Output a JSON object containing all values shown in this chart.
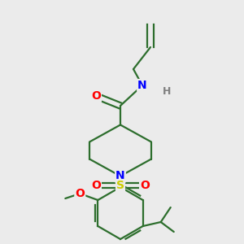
{
  "background_color": "#ebebeb",
  "bond_color": "#2d6e2d",
  "atom_colors": {
    "O": "#ff0000",
    "N": "#0000ff",
    "S": "#cccc00",
    "H": "#808080",
    "C": "#2d6e2d"
  },
  "figsize": [
    3.0,
    3.0
  ],
  "dpi": 100,
  "lw": 1.6
}
